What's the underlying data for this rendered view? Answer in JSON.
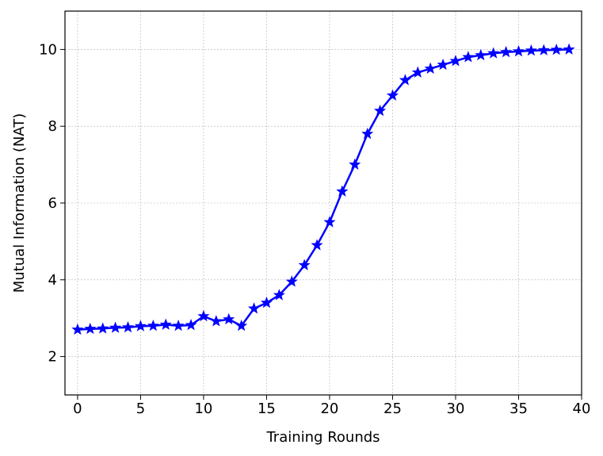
{
  "chart_data": {
    "type": "line",
    "xlabel": "Training Rounds",
    "ylabel": "Mutual Information (NAT)",
    "x": [
      0,
      1,
      2,
      3,
      4,
      5,
      6,
      7,
      8,
      9,
      10,
      11,
      12,
      13,
      14,
      15,
      16,
      17,
      18,
      19,
      20,
      21,
      22,
      23,
      24,
      25,
      26,
      27,
      28,
      29,
      30,
      31,
      32,
      33,
      34,
      35,
      36,
      37,
      38,
      39
    ],
    "values": [
      2.7,
      2.72,
      2.73,
      2.75,
      2.76,
      2.79,
      2.8,
      2.83,
      2.8,
      2.82,
      3.05,
      2.92,
      2.97,
      2.8,
      3.25,
      3.4,
      3.6,
      3.95,
      4.38,
      4.9,
      5.5,
      6.3,
      7.0,
      7.8,
      8.4,
      8.8,
      9.2,
      9.4,
      9.5,
      9.6,
      9.7,
      9.8,
      9.85,
      9.9,
      9.93,
      9.95,
      9.97,
      9.98,
      9.99,
      10.0
    ],
    "color": "#0000ff",
    "marker": "star",
    "xlim": [
      -1,
      40
    ],
    "xticks": [
      0,
      5,
      10,
      15,
      20,
      25,
      30,
      35,
      40
    ],
    "ylim": [
      1,
      11
    ],
    "yticks": [
      2,
      4,
      6,
      8,
      10
    ],
    "grid": true
  }
}
